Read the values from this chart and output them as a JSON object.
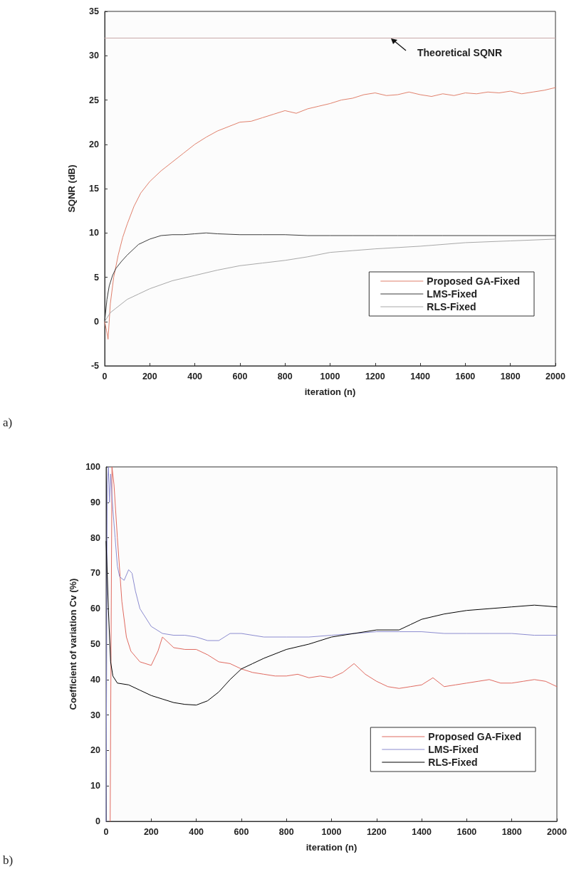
{
  "chart_data": [
    {
      "type": "line",
      "xlabel": "iteration (n)",
      "ylabel": "SQNR (dB)",
      "xlim": [
        0,
        2000
      ],
      "xticks": [
        0,
        200,
        400,
        600,
        800,
        1000,
        1200,
        1400,
        1600,
        1800,
        2000
      ],
      "ylim": [
        -5,
        35
      ],
      "yticks": [
        -5,
        0,
        5,
        10,
        15,
        20,
        25,
        30,
        35
      ],
      "grid": false,
      "legend": "bottom right",
      "annotations": [
        {
          "text": "Theoretical SQNR",
          "x": 1267,
          "y": 32
        },
        "a)"
      ],
      "ref_lines": [
        {
          "axis": "y",
          "value": 32,
          "color": "#c9a9a9"
        }
      ],
      "series": [
        {
          "name": "Proposed GA-Fixed",
          "color": "#e0806c",
          "x": [
            0,
            8,
            15,
            25,
            40,
            60,
            80,
            100,
            130,
            160,
            200,
            250,
            300,
            350,
            400,
            450,
            500,
            550,
            600,
            650,
            700,
            750,
            800,
            850,
            900,
            950,
            1000,
            1050,
            1100,
            1150,
            1200,
            1250,
            1300,
            1350,
            1400,
            1450,
            1500,
            1550,
            1600,
            1650,
            1700,
            1750,
            1800,
            1850,
            1900,
            1950,
            2000
          ],
          "values": [
            0,
            -1,
            -2,
            2,
            5,
            7.5,
            9.5,
            11,
            13,
            14.5,
            15.8,
            17,
            18,
            19,
            20,
            20.8,
            21.5,
            22,
            22.5,
            22.6,
            23,
            23.4,
            23.8,
            23.5,
            24,
            24.3,
            24.6,
            25,
            25.2,
            25.6,
            25.8,
            25.5,
            25.6,
            25.9,
            25.6,
            25.4,
            25.7,
            25.5,
            25.8,
            25.7,
            25.9,
            25.8,
            26,
            25.7,
            25.9,
            26.1,
            26.4
          ]
        },
        {
          "name": "LMS-Fixed",
          "color": "#3c3c3c",
          "x": [
            0,
            10,
            20,
            35,
            50,
            75,
            100,
            150,
            200,
            250,
            300,
            350,
            400,
            450,
            500,
            600,
            700,
            800,
            900,
            1000,
            1100,
            1200,
            1300,
            1370,
            1500,
            1700,
            2000
          ],
          "values": [
            0,
            2.5,
            4,
            5.2,
            6,
            6.8,
            7.5,
            8.7,
            9.3,
            9.7,
            9.8,
            9.8,
            9.9,
            10,
            9.9,
            9.8,
            9.8,
            9.8,
            9.7,
            9.7,
            9.7,
            9.7,
            9.7,
            9.7,
            9.7,
            9.7,
            9.7
          ]
        },
        {
          "name": "RLS-Fixed",
          "color": "#a8a8a8",
          "x": [
            0,
            25,
            50,
            100,
            150,
            200,
            300,
            400,
            500,
            600,
            700,
            800,
            900,
            1000,
            1100,
            1200,
            1400,
            1600,
            1800,
            2000
          ],
          "values": [
            0,
            1,
            1.5,
            2.5,
            3.1,
            3.7,
            4.6,
            5.2,
            5.8,
            6.3,
            6.6,
            6.9,
            7.3,
            7.8,
            8,
            8.2,
            8.5,
            8.9,
            9.1,
            9.3
          ]
        }
      ]
    },
    {
      "type": "line",
      "xlabel": "iteration (n)",
      "ylabel": "Coefficient of variation Cv (%)",
      "xlim": [
        0,
        2000
      ],
      "xticks": [
        0,
        200,
        400,
        600,
        800,
        1000,
        1200,
        1400,
        1600,
        1800,
        2000
      ],
      "ylim": [
        0,
        100
      ],
      "yticks": [
        0,
        10,
        20,
        30,
        40,
        50,
        60,
        70,
        80,
        90,
        100
      ],
      "grid": false,
      "legend": "bottom right",
      "annotations": [
        "b)"
      ],
      "series": [
        {
          "name": "Proposed GA-Fixed",
          "color": "#e06a60",
          "x": [
            18,
            22,
            26,
            35,
            50,
            70,
            90,
            110,
            150,
            200,
            230,
            250,
            300,
            350,
            400,
            450,
            500,
            550,
            600,
            650,
            700,
            750,
            800,
            850,
            900,
            950,
            1000,
            1050,
            1100,
            1150,
            1200,
            1250,
            1300,
            1350,
            1400,
            1450,
            1500,
            1550,
            1600,
            1650,
            1700,
            1750,
            1800,
            1850,
            1900,
            1950,
            2000
          ],
          "values": [
            0,
            50,
            100,
            95,
            80,
            62,
            52,
            48,
            45,
            44,
            48,
            52,
            49,
            48.5,
            48.5,
            47,
            45,
            44.5,
            43,
            42,
            41.5,
            41,
            41,
            41.5,
            40.5,
            41,
            40.5,
            42,
            44.5,
            41.5,
            39.5,
            38,
            37.5,
            38,
            38.5,
            40.5,
            38,
            38.5,
            39,
            39.5,
            40,
            39,
            39,
            39.5,
            40,
            39.5,
            38
          ]
        },
        {
          "name": "LMS-Fixed",
          "color": "#8c8cd0",
          "x": [
            0,
            5,
            10,
            15,
            20,
            30,
            40,
            50,
            60,
            80,
            100,
            115,
            130,
            150,
            200,
            250,
            300,
            350,
            400,
            450,
            500,
            550,
            600,
            700,
            800,
            900,
            1000,
            1100,
            1200,
            1300,
            1400,
            1500,
            1600,
            1700,
            1800,
            1900,
            2000
          ],
          "values": [
            0,
            95,
            100,
            90,
            98,
            88,
            80,
            72,
            69,
            68,
            71,
            70,
            65,
            60,
            55,
            53,
            52.5,
            52.5,
            52,
            51,
            51,
            53,
            53,
            52,
            52,
            52,
            52.5,
            53,
            53.5,
            53.5,
            53.5,
            53,
            53,
            53,
            53,
            52.5,
            52.5
          ]
        },
        {
          "name": "RLS-Fixed",
          "color": "#000000",
          "x": [
            0,
            5,
            10,
            20,
            30,
            50,
            100,
            150,
            200,
            250,
            300,
            350,
            400,
            450,
            500,
            550,
            600,
            650,
            700,
            800,
            900,
            1000,
            1100,
            1200,
            1300,
            1350,
            1400,
            1500,
            1600,
            1700,
            1800,
            1900,
            2000
          ],
          "values": [
            79,
            70,
            60,
            45,
            41,
            39,
            38.5,
            37,
            35.5,
            34.5,
            33.5,
            33,
            32.8,
            34,
            36.5,
            40,
            43,
            44.5,
            46,
            48.5,
            50,
            52,
            53,
            54,
            54,
            55.5,
            57,
            58.5,
            59.5,
            60,
            60.5,
            61,
            60.5
          ]
        }
      ]
    }
  ]
}
